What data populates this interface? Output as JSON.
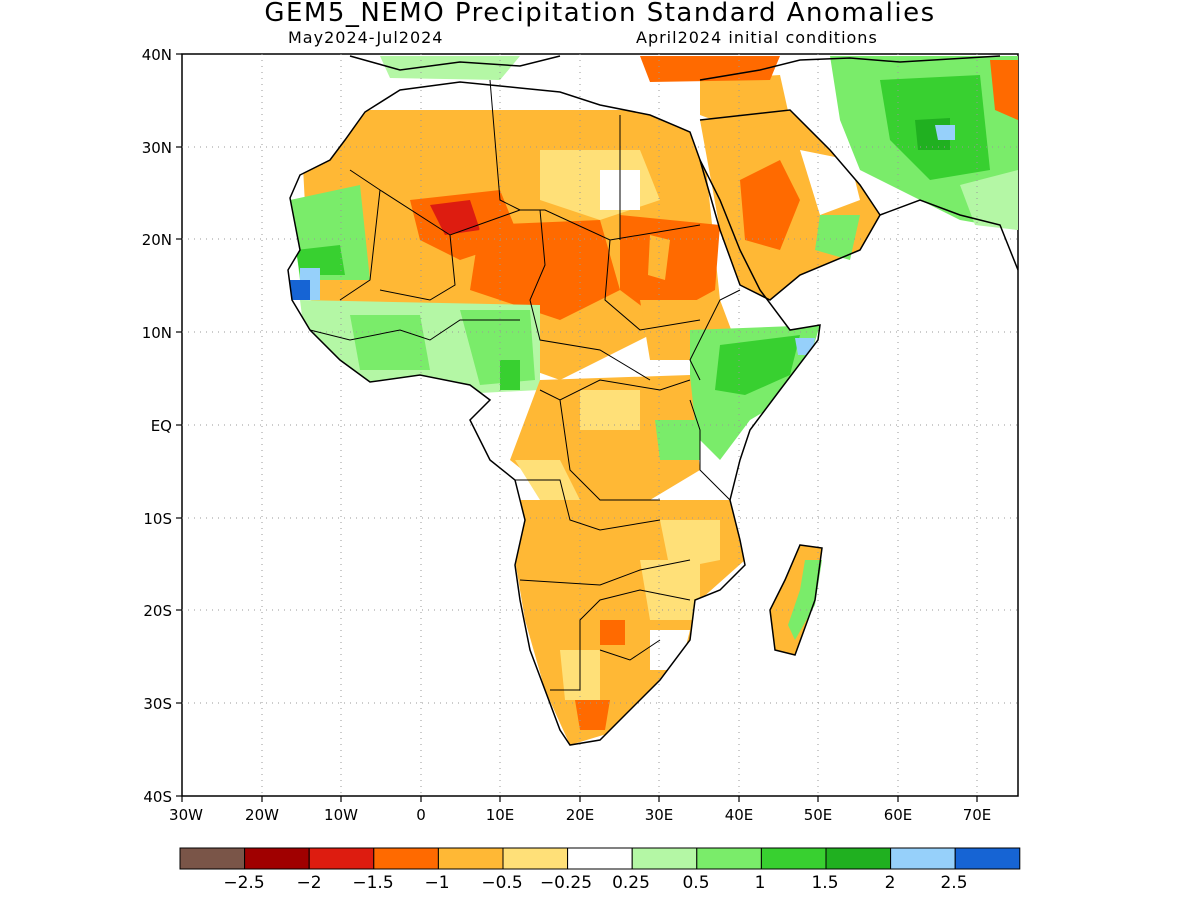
{
  "header": {
    "title": "GEM5_NEMO Precipitation Standard Anomalies",
    "period": "May2024-Jul2024",
    "init": "April2024 initial conditions"
  },
  "axes": {
    "lat_labels": [
      "40N",
      "30N",
      "20N",
      "10N",
      "EQ",
      "10S",
      "20S",
      "30S",
      "40S"
    ],
    "lon_labels": [
      "30W",
      "20W",
      "10W",
      "0",
      "10E",
      "20E",
      "30E",
      "40E",
      "50E",
      "60E",
      "70E"
    ]
  },
  "colorbar": {
    "colors": [
      "#7a5548",
      "#a00000",
      "#dd1c10",
      "#ff6a00",
      "#ffb835",
      "#ffe078",
      "#ffffff",
      "#b4f7a5",
      "#7aec6a",
      "#38d030",
      "#20b020",
      "#96d0fa",
      "#1664d4"
    ],
    "labels": [
      "−2.5",
      "−2",
      "−1.5",
      "−1",
      "−0.5",
      "−0.25",
      "0.25",
      "0.5",
      "1",
      "1.5",
      "2",
      "2.5"
    ]
  },
  "map": {
    "domain": "Africa, Arabia and southwest Asia",
    "anomaly_regions": [
      {
        "name": "Sahel and Sahara",
        "category": "-0.5 to -1"
      },
      {
        "name": "Niger-Chad-Sudan core",
        "category": "-1 to -1.5"
      },
      {
        "name": "Gulf of Guinea coast",
        "category": "0.5 to 1"
      },
      {
        "name": "Senegal-Gambia coast",
        "category": "2 to 2.5"
      },
      {
        "name": "Horn of Africa",
        "category": "1 to 1.5"
      },
      {
        "name": "Congo Basin",
        "category": "-0.5 to -1"
      },
      {
        "name": "Southern Africa",
        "category": "-0.5 to -1"
      },
      {
        "name": "Arabian Peninsula",
        "category": "-0.5 to -1.5"
      },
      {
        "name": "Iran-Afghanistan-Pakistan",
        "category": "1 to 2"
      },
      {
        "name": "Eastern Madagascar",
        "category": "0.5 to 1"
      }
    ]
  }
}
